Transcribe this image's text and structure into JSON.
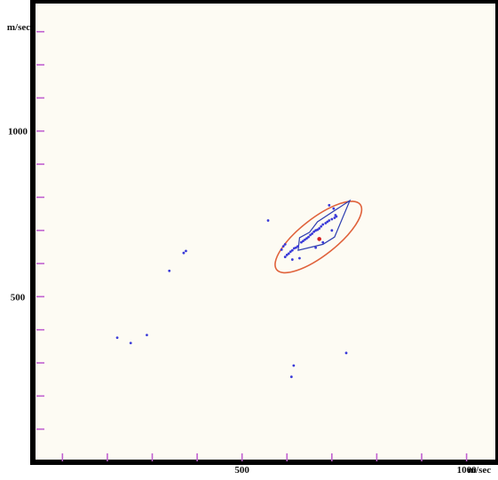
{
  "chart_data": {
    "type": "scatter",
    "title": "",
    "xlabel": "m/sec",
    "ylabel": "m/sec",
    "xlim": [
      40,
      1070
    ],
    "ylim": [
      0,
      1385
    ],
    "x_ticks": [
      500,
      1000
    ],
    "y_ticks": [
      500,
      1000
    ],
    "x_minor_ticks": [
      100,
      200,
      300,
      400,
      500,
      600,
      700,
      800,
      900,
      1000
    ],
    "y_minor_ticks": [
      100,
      200,
      300,
      400,
      500,
      600,
      700,
      800,
      900,
      1000,
      1100,
      1200,
      1300
    ],
    "grid": false,
    "colors": {
      "plot_background": "#fdfbf3",
      "frame": "#000000",
      "points": "#3a3ad8",
      "polygon": "#2d3db0",
      "ellipse": "#e0623b",
      "center": "#d62020",
      "ticks": "#c060d0"
    },
    "series": [
      {
        "points": [
          [
            558,
            730
          ],
          [
            694,
            776
          ],
          [
            704,
            766
          ],
          [
            708,
            746
          ],
          [
            710,
            742
          ],
          [
            706,
            738
          ],
          [
            700,
            734
          ],
          [
            694,
            730
          ],
          [
            690,
            726
          ],
          [
            686,
            722
          ],
          [
            680,
            718
          ],
          [
            676,
            712
          ],
          [
            672,
            706
          ],
          [
            668,
            702
          ],
          [
            664,
            700
          ],
          [
            660,
            696
          ],
          [
            656,
            690
          ],
          [
            652,
            686
          ],
          [
            648,
            680
          ],
          [
            644,
            676
          ],
          [
            640,
            672
          ],
          [
            636,
            668
          ],
          [
            632,
            664
          ],
          [
            624,
            652
          ],
          [
            620,
            648
          ],
          [
            616,
            646
          ],
          [
            612,
            640
          ],
          [
            608,
            636
          ],
          [
            604,
            630
          ],
          [
            600,
            626
          ],
          [
            596,
            658
          ],
          [
            592,
            652
          ],
          [
            588,
            642
          ],
          [
            596,
            620
          ],
          [
            612,
            612
          ],
          [
            628,
            616
          ],
          [
            664,
            648
          ],
          [
            680,
            664
          ],
          [
            700,
            700
          ],
          [
            375,
            638
          ],
          [
            370,
            632
          ],
          [
            338,
            578
          ],
          [
            222,
            376
          ],
          [
            252,
            360
          ],
          [
            288,
            384
          ],
          [
            615,
            292
          ],
          [
            610,
            258
          ],
          [
            732,
            330
          ]
        ]
      }
    ],
    "polygon_points": [
      [
        628,
        678
      ],
      [
        650,
        694
      ],
      [
        668,
        726
      ],
      [
        740,
        790
      ],
      [
        706,
        680
      ],
      [
        680,
        658
      ],
      [
        625,
        640
      ]
    ],
    "ellipse": {
      "cx": 670,
      "cy": 680,
      "rx": 118,
      "ry": 56,
      "angle_deg": 38
    },
    "center_point": [
      672,
      674
    ],
    "tick_labels_x": [
      "500",
      "1000"
    ],
    "tick_labels_y": [
      "500",
      "1000"
    ]
  }
}
